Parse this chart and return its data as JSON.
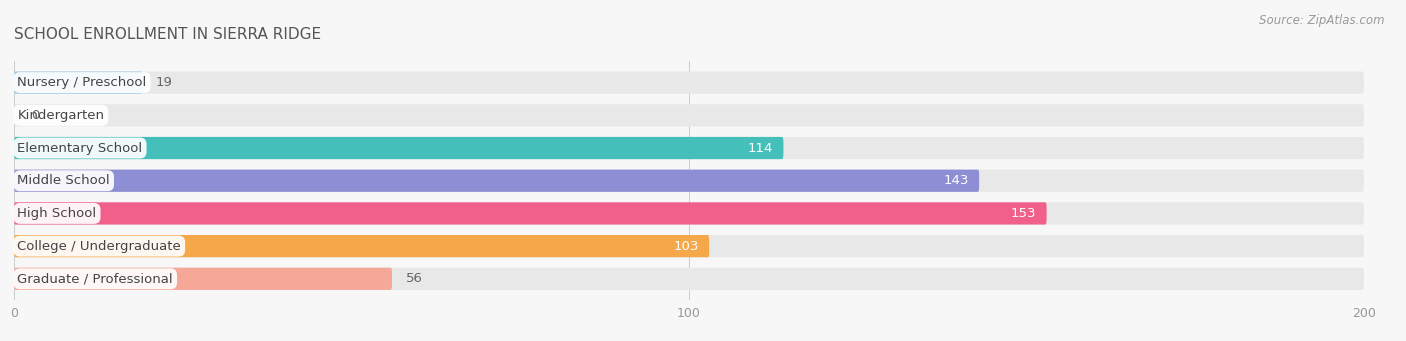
{
  "title": "SCHOOL ENROLLMENT IN SIERRA RIDGE",
  "source": "Source: ZipAtlas.com",
  "categories": [
    "Nursery / Preschool",
    "Kindergarten",
    "Elementary School",
    "Middle School",
    "High School",
    "College / Undergraduate",
    "Graduate / Professional"
  ],
  "values": [
    19,
    0,
    114,
    143,
    153,
    103,
    56
  ],
  "colors": [
    "#9ECBEA",
    "#C9AADC",
    "#45BFBA",
    "#8E8ED4",
    "#F0608A",
    "#F5A84A",
    "#F5A898"
  ],
  "xlim": [
    0,
    200
  ],
  "xticks": [
    0,
    100,
    200
  ],
  "background_color": "#f7f7f7",
  "bar_bg_color": "#e8e8e8",
  "title_fontsize": 11,
  "label_fontsize": 9.5,
  "value_fontsize": 9.5,
  "bar_height": 0.68,
  "bar_gap": 0.32,
  "value_threshold": 60
}
